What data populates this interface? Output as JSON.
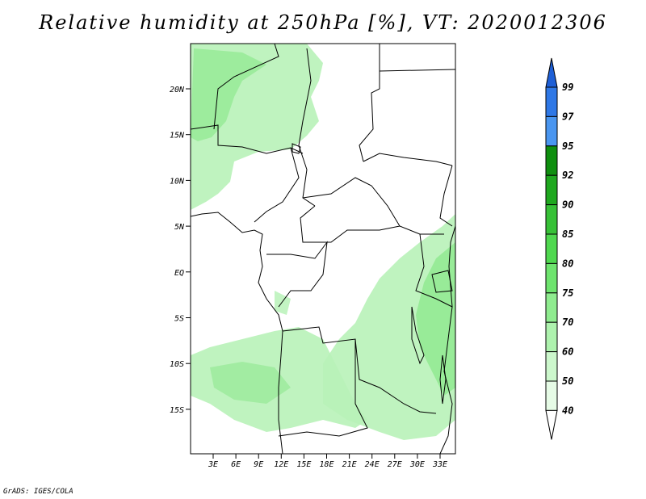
{
  "title": "Relative humidity at 250hPa [%], VT: 2020012306",
  "credit": "GrADS: IGES/COLA",
  "map": {
    "lat_labels": [
      "20N",
      "15N",
      "10N",
      "5N",
      "EQ",
      "5S",
      "10S",
      "15S"
    ],
    "lon_labels": [
      "3E",
      "6E",
      "9E",
      "12E",
      "15E",
      "18E",
      "21E",
      "24E",
      "27E",
      "30E",
      "33E"
    ],
    "fill_color": "#8fe88f"
  },
  "colorbar": {
    "levels": [
      "99",
      "97",
      "95",
      "92",
      "90",
      "85",
      "80",
      "75",
      "70",
      "60",
      "50",
      "40"
    ],
    "colors": {
      "above_99": "#1e5fd6",
      "97_99": "#2f78e6",
      "95_97": "#4a96f0",
      "92_95": "#0f8f0f",
      "90_92": "#1fa81f",
      "85_90": "#37c137",
      "80_85": "#4fd84f",
      "75_80": "#6ee46e",
      "70_75": "#8fec8f",
      "60_70": "#aef2ae",
      "50_60": "#ccf7cc",
      "40_50": "#e6fbe6",
      "below_40": "#ffffff"
    }
  }
}
